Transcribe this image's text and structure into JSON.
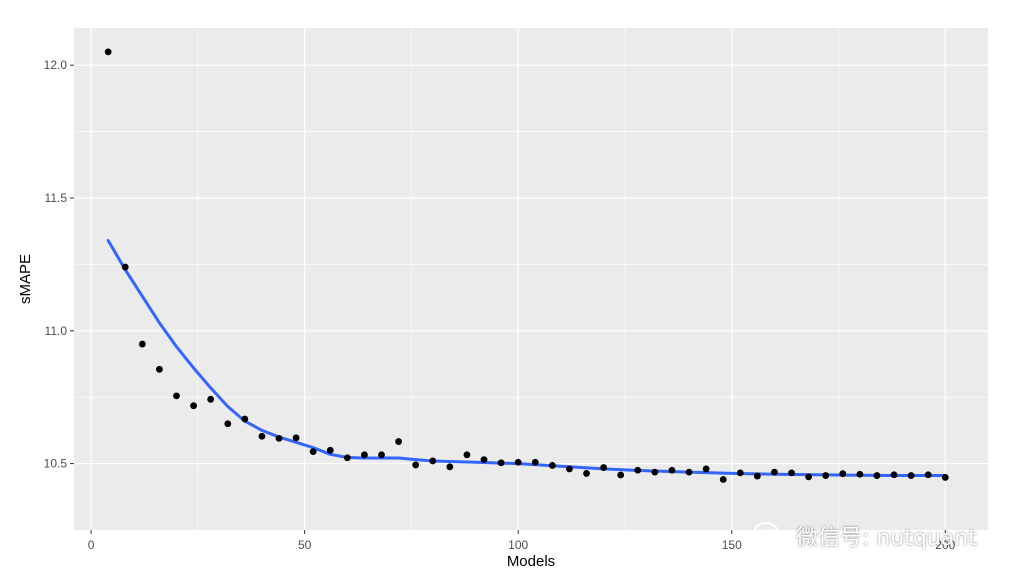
{
  "chart_data": {
    "type": "scatter",
    "xlabel": "Models",
    "ylabel": "sMAPE",
    "xlim": [
      -4,
      210
    ],
    "ylim": [
      10.25,
      12.14
    ],
    "x_ticks": [
      0,
      50,
      100,
      150,
      200
    ],
    "x_tick_labels": [
      "0",
      "50",
      "100",
      "150",
      "200"
    ],
    "y_ticks": [
      10.5,
      11.0,
      11.5,
      12.0
    ],
    "y_tick_labels": [
      "10.5",
      "11.0",
      "11.5",
      "12.0"
    ],
    "grid": true,
    "points": [
      [
        4,
        12.05
      ],
      [
        8,
        11.24
      ],
      [
        12,
        10.95
      ],
      [
        16,
        10.855
      ],
      [
        20,
        10.755
      ],
      [
        24,
        10.718
      ],
      [
        28,
        10.742
      ],
      [
        32,
        10.65
      ],
      [
        36,
        10.668
      ],
      [
        40,
        10.603
      ],
      [
        44,
        10.595
      ],
      [
        48,
        10.597
      ],
      [
        52,
        10.545
      ],
      [
        56,
        10.55
      ],
      [
        60,
        10.522
      ],
      [
        64,
        10.533
      ],
      [
        68,
        10.533
      ],
      [
        72,
        10.583
      ],
      [
        76,
        10.495
      ],
      [
        80,
        10.51
      ],
      [
        84,
        10.488
      ],
      [
        88,
        10.533
      ],
      [
        92,
        10.515
      ],
      [
        96,
        10.503
      ],
      [
        100,
        10.505
      ],
      [
        104,
        10.505
      ],
      [
        108,
        10.493
      ],
      [
        112,
        10.48
      ],
      [
        116,
        10.463
      ],
      [
        120,
        10.485
      ],
      [
        124,
        10.457
      ],
      [
        128,
        10.475
      ],
      [
        132,
        10.468
      ],
      [
        136,
        10.475
      ],
      [
        140,
        10.468
      ],
      [
        144,
        10.48
      ],
      [
        148,
        10.44
      ],
      [
        152,
        10.465
      ],
      [
        156,
        10.453
      ],
      [
        160,
        10.468
      ],
      [
        164,
        10.465
      ],
      [
        168,
        10.45
      ],
      [
        172,
        10.455
      ],
      [
        176,
        10.462
      ],
      [
        180,
        10.46
      ],
      [
        184,
        10.455
      ],
      [
        188,
        10.458
      ],
      [
        192,
        10.455
      ],
      [
        196,
        10.458
      ],
      [
        200,
        10.448
      ]
    ],
    "smooth": [
      [
        4,
        11.34
      ],
      [
        8,
        11.23
      ],
      [
        12,
        11.13
      ],
      [
        16,
        11.03
      ],
      [
        20,
        10.94
      ],
      [
        24,
        10.86
      ],
      [
        28,
        10.785
      ],
      [
        32,
        10.715
      ],
      [
        36,
        10.66
      ],
      [
        40,
        10.625
      ],
      [
        44,
        10.6
      ],
      [
        48,
        10.58
      ],
      [
        52,
        10.56
      ],
      [
        56,
        10.535
      ],
      [
        60,
        10.523
      ],
      [
        64,
        10.521
      ],
      [
        68,
        10.521
      ],
      [
        72,
        10.521
      ],
      [
        76,
        10.515
      ],
      [
        80,
        10.51
      ],
      [
        90,
        10.505
      ],
      [
        100,
        10.5
      ],
      [
        110,
        10.49
      ],
      [
        120,
        10.48
      ],
      [
        130,
        10.473
      ],
      [
        140,
        10.468
      ],
      [
        150,
        10.463
      ],
      [
        160,
        10.46
      ],
      [
        170,
        10.458
      ],
      [
        180,
        10.456
      ],
      [
        190,
        10.455
      ],
      [
        200,
        10.455
      ]
    ],
    "point_color": "#000000",
    "line_color": "#3366ff",
    "panel_bg": "#ebebeb",
    "grid_color": "#ffffff"
  },
  "watermark": {
    "text": "微信号: nutquant",
    "icon": "wechat-icon"
  }
}
